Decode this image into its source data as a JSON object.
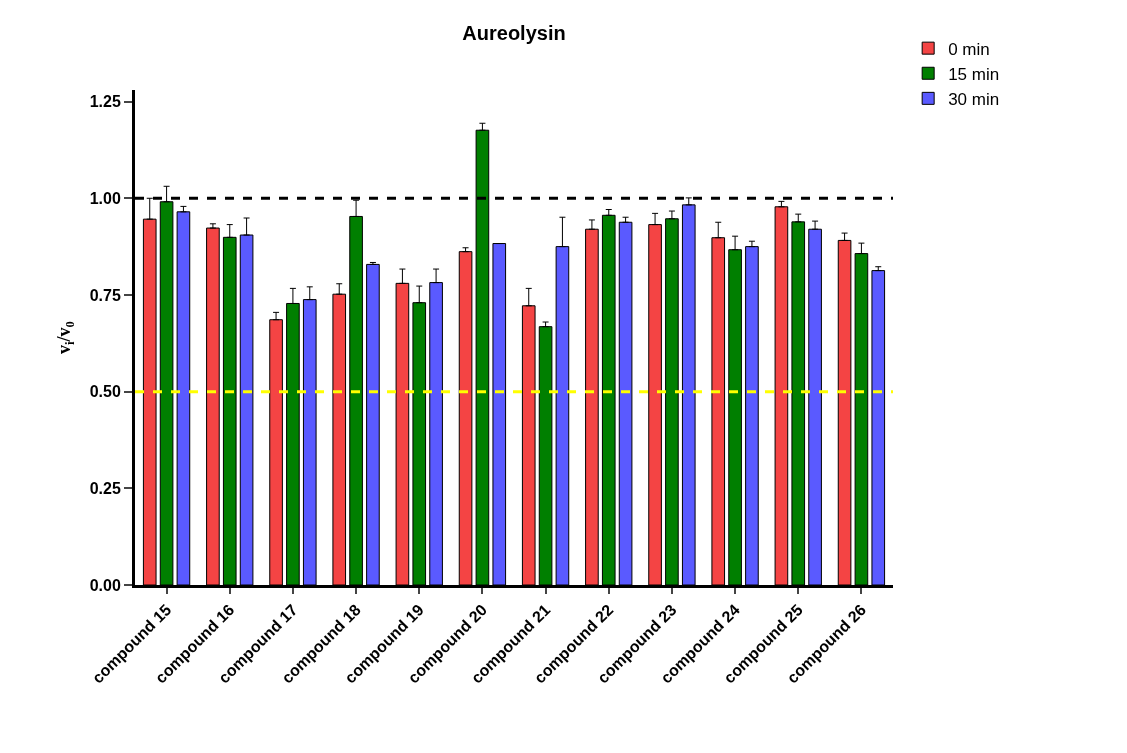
{
  "chart_data": {
    "type": "bar",
    "title": "Aureolysin",
    "ylabel": "v$_{i}$/v$_{0}$",
    "categories": [
      "compound 15",
      "compound 16",
      "compound 17",
      "compound 18",
      "compound 19",
      "compound 20",
      "compound 21",
      "compound 22",
      "compound 23",
      "compound 24",
      "compound 25",
      "compound 26"
    ],
    "series": [
      {
        "name": "0 min",
        "color": "#f44444",
        "values": [
          0.946,
          0.923,
          0.686,
          0.752,
          0.78,
          0.862,
          0.722,
          0.92,
          0.932,
          0.898,
          0.978,
          0.891
        ],
        "errors": [
          [
            0.946,
            1.0
          ],
          [
            0.923,
            0.934
          ],
          [
            0.686,
            0.705
          ],
          [
            0.752,
            0.779
          ],
          [
            0.78,
            0.817
          ],
          [
            0.862,
            0.872
          ],
          [
            0.722,
            0.767
          ],
          [
            0.92,
            0.944
          ],
          [
            0.932,
            0.961
          ],
          [
            0.898,
            0.938
          ],
          [
            0.978,
            0.992
          ],
          [
            0.891,
            0.91
          ]
        ]
      },
      {
        "name": "15 min",
        "color": "#007f00",
        "values": [
          0.991,
          0.899,
          0.728,
          0.953,
          0.73,
          1.176,
          0.668,
          0.956,
          0.947,
          0.867,
          0.939,
          0.857
        ],
        "errors": [
          [
            0.991,
            1.031
          ],
          [
            0.899,
            0.932
          ],
          [
            0.728,
            0.767
          ],
          [
            0.953,
            0.995
          ],
          [
            0.73,
            0.773
          ],
          [
            1.176,
            1.194
          ],
          [
            0.668,
            0.68
          ],
          [
            0.956,
            0.971
          ],
          [
            0.947,
            0.967
          ],
          [
            0.867,
            0.902
          ],
          [
            0.939,
            0.959
          ],
          [
            0.857,
            0.884
          ]
        ]
      },
      {
        "name": "30 min",
        "color": "#5a5aff",
        "values": [
          0.965,
          0.905,
          0.738,
          0.829,
          0.782,
          0.883,
          0.875,
          0.938,
          0.983,
          0.875,
          0.92,
          0.813
        ],
        "errors": [
          [
            0.965,
            0.979
          ],
          [
            0.905,
            0.949
          ],
          [
            0.738,
            0.771
          ],
          [
            0.829,
            0.834
          ],
          [
            0.782,
            0.817
          ],
          null,
          [
            0.875,
            0.951
          ],
          [
            0.938,
            0.951
          ],
          [
            0.983,
            1.001
          ],
          [
            0.875,
            0.889
          ],
          [
            0.92,
            0.941
          ],
          [
            0.813,
            0.823
          ]
        ]
      }
    ],
    "ylim": [
      0,
      1.28
    ],
    "yticks": [
      {
        "value": 0,
        "label": "0.00"
      },
      {
        "value": 0.25,
        "label": "0.25"
      },
      {
        "value": 0.5,
        "label": "0.50"
      },
      {
        "value": 0.75,
        "label": "0.75"
      },
      {
        "value": 1,
        "label": "1.00"
      },
      {
        "value": 1.25,
        "label": "1.25"
      }
    ],
    "ref_lines": [
      {
        "axis": "y",
        "value": 1,
        "color": "#000000",
        "line_style": "dashed"
      },
      {
        "axis": "y",
        "value": 0.5,
        "color": "#ffff00",
        "line_style": "dashed"
      }
    ],
    "legend": "top right"
  }
}
